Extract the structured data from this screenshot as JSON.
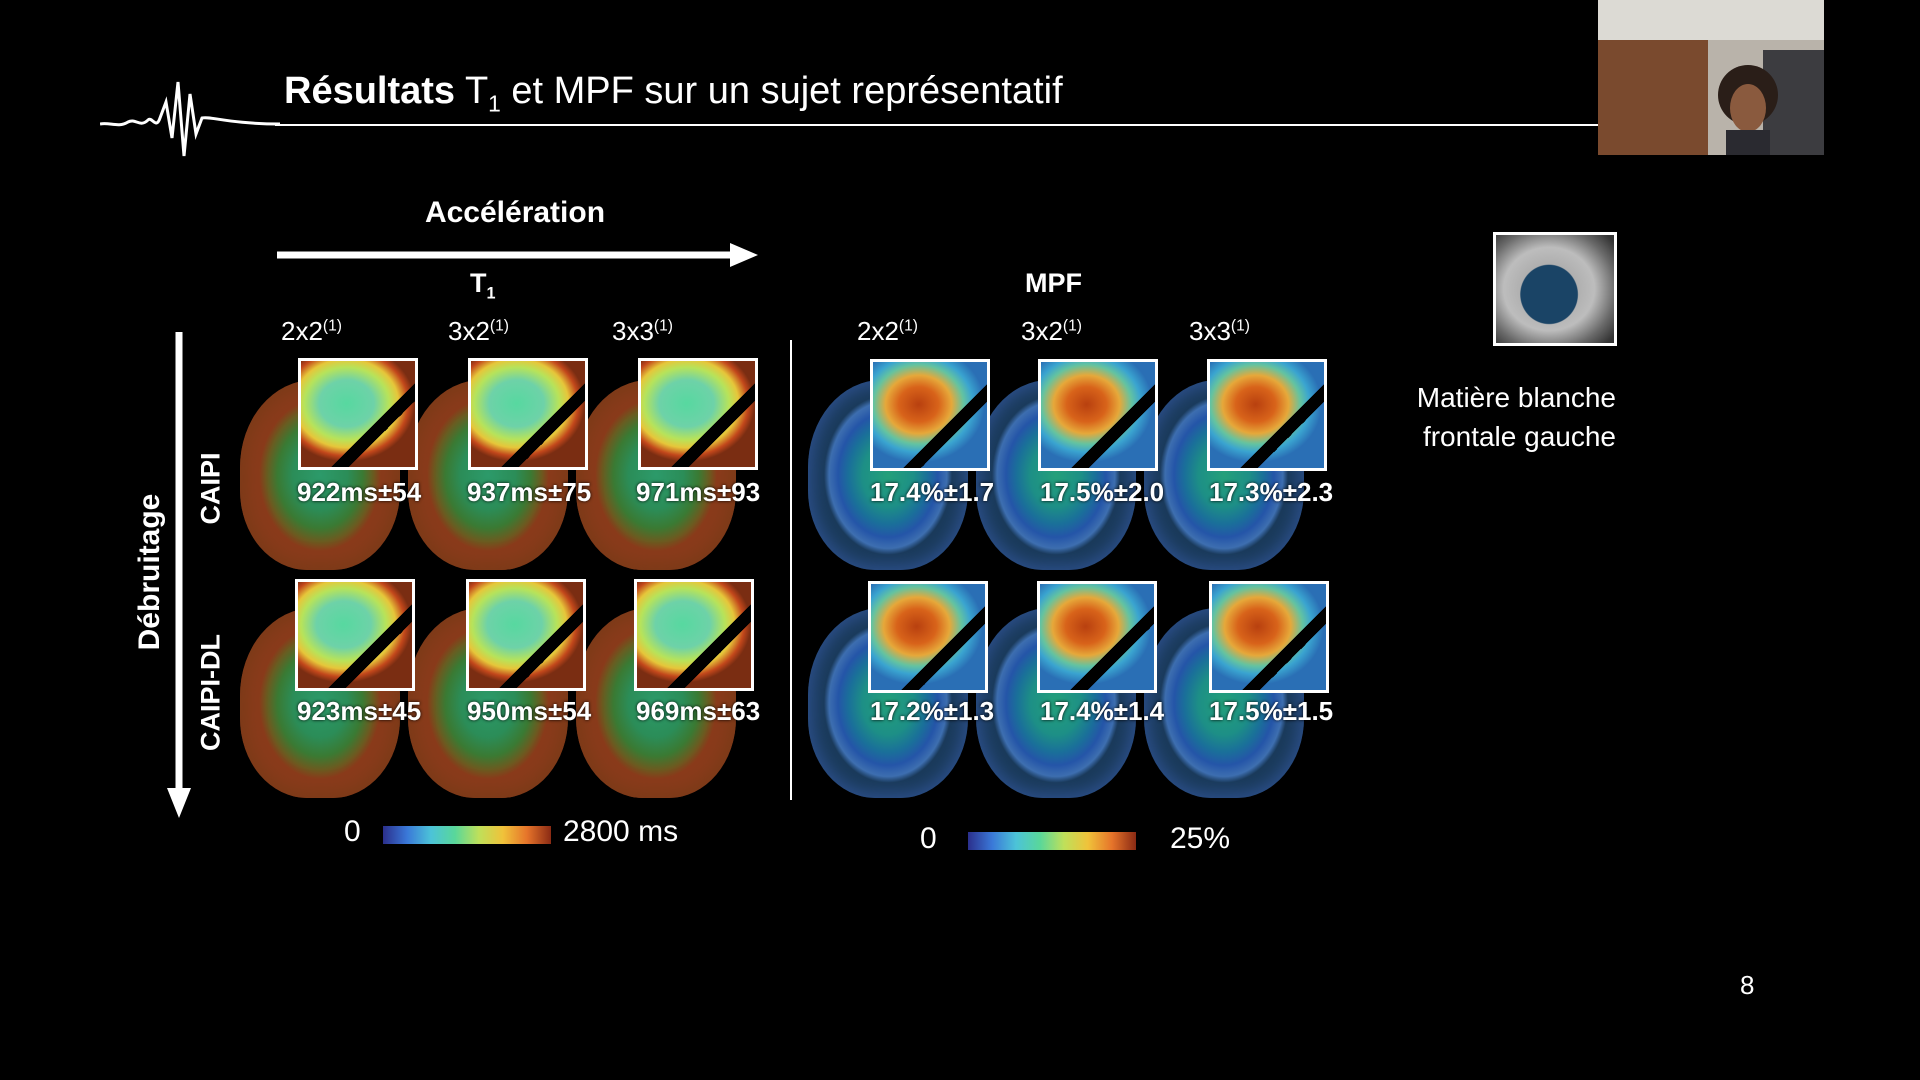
{
  "slide": {
    "title_bold": "Résultats",
    "title_t": "T",
    "title_sub": "1",
    "title_rest": " et MPF sur un sujet représentatif",
    "page_number": "8"
  },
  "axes": {
    "acceleration": "Accélération",
    "denoising": "Débruitage",
    "row_caipi": "CAIPI",
    "row_caipi_dl": "CAIPI-DL"
  },
  "t1_panel": {
    "title": "T",
    "title_sub": "1",
    "factors": [
      {
        "base": "2x2",
        "ref": "(1)"
      },
      {
        "base": "3x2",
        "ref": "(1)"
      },
      {
        "base": "3x3",
        "ref": "(1)"
      }
    ],
    "caipi_values": [
      "922ms±54",
      "937ms±75",
      "971ms±93"
    ],
    "caipi_dl_values": [
      "923ms±45",
      "950ms±54",
      "969ms±63"
    ],
    "colorbar_min": "0",
    "colorbar_max": "2800 ms"
  },
  "mpf_panel": {
    "title": "MPF",
    "factors": [
      {
        "base": "2x2",
        "ref": "(1)"
      },
      {
        "base": "3x2",
        "ref": "(1)"
      },
      {
        "base": "3x3",
        "ref": "(1)"
      }
    ],
    "caipi_values": [
      "17.4%±1.7",
      "17.5%±2.0",
      "17.3%±2.3"
    ],
    "caipi_dl_values": [
      "17.2%±1.3",
      "17.4%±1.4",
      "17.5%±1.5"
    ],
    "colorbar_min": "0",
    "colorbar_max": "25%"
  },
  "roi": {
    "line1": "Matière blanche",
    "line2": "frontale gauche"
  },
  "colors": {
    "background": "#000000",
    "text": "#ffffff"
  }
}
